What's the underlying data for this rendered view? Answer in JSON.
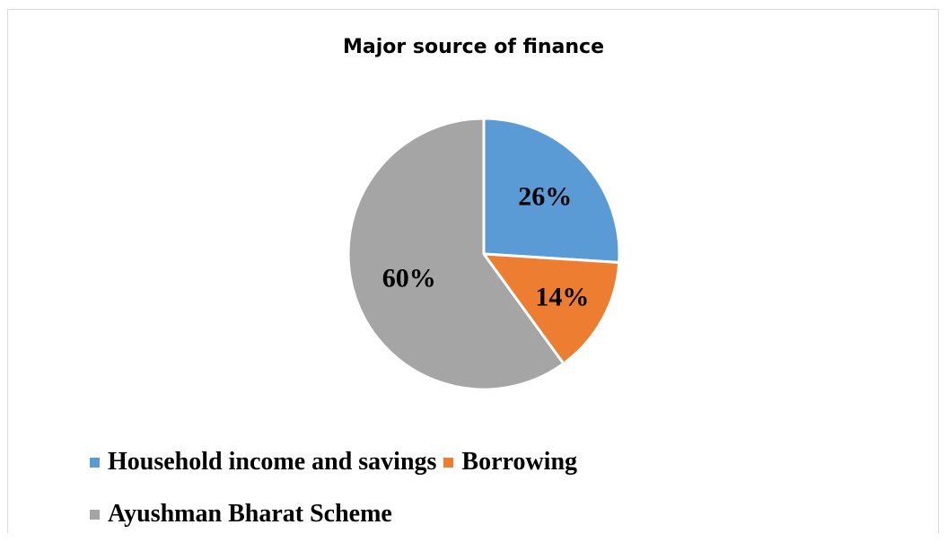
{
  "chart_data": {
    "type": "pie",
    "title": "Major source of finance",
    "series": [
      {
        "categories": [
          "Household income and savings",
          "Borrowing",
          "Ayushman Bharat Scheme"
        ],
        "values": [
          26,
          14,
          60
        ],
        "labels": [
          "26%",
          "14%",
          "60%"
        ],
        "colors": [
          "#5b9bd5",
          "#ed7d31",
          "#a5a5a5"
        ]
      }
    ],
    "legend_position": "bottom",
    "legend": [
      {
        "label": "Household income and savings",
        "color": "#5b9bd5"
      },
      {
        "label": "Borrowing",
        "color": "#ed7d31"
      },
      {
        "label": "Ayushman Bharat Scheme",
        "color": "#a5a5a5"
      }
    ]
  }
}
